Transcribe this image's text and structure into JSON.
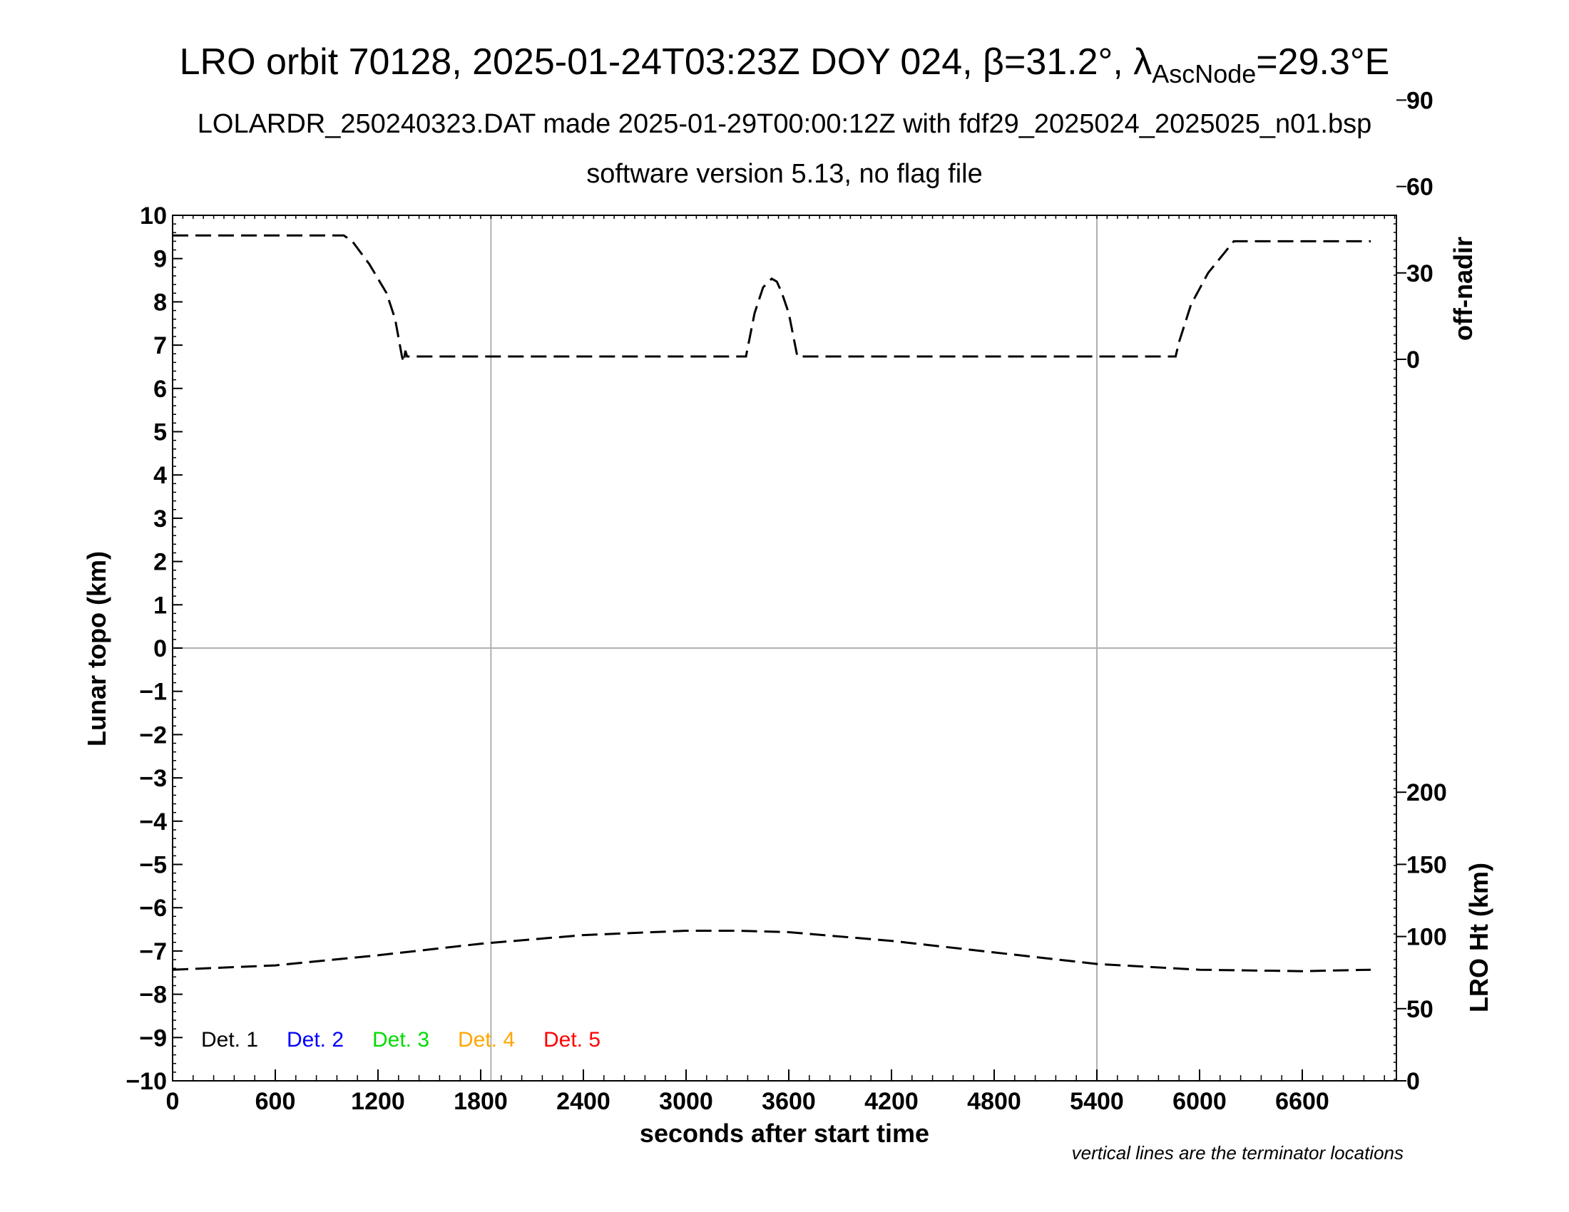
{
  "chart_data": {
    "type": "line",
    "title_main": "LRO orbit 70128, 2025-01-24T03:23Z DOY 024, ",
    "title_beta_symbol": "β",
    "title_beta_value": "=31.2°, ",
    "title_lambda_symbol": "λ",
    "title_lambda_sub": "AscNode",
    "title_lambda_value": "=29.3°E",
    "subtitle1": "LOLARDR_250240323.DAT made 2025-01-29T00:00:12Z with fdf29_2025024_2025025_n01.bsp",
    "subtitle2": "software version 5.13, no flag file",
    "xlabel": "seconds after start time",
    "ylabel_left": "Lunar topo (km)",
    "ylabel_right_top": "off-nadir",
    "ylabel_right_bottom": "LRO Ht (km)",
    "note": "vertical lines are the terminator locations",
    "xlim": [
      0,
      7150
    ],
    "ylim_left": [
      -10,
      10
    ],
    "x_ticks": [
      "0",
      "600",
      "1200",
      "1800",
      "2400",
      "3000",
      "3600",
      "4200",
      "4800",
      "5400",
      "6000",
      "6600"
    ],
    "x_tick_values": [
      0,
      600,
      1200,
      1800,
      2400,
      3000,
      3600,
      4200,
      4800,
      5400,
      6000,
      6600
    ],
    "y_ticks_left": [
      "−10",
      "−9",
      "−8",
      "−7",
      "−6",
      "−5",
      "−4",
      "−3",
      "−2",
      "−1",
      "0",
      "1",
      "2",
      "3",
      "4",
      "5",
      "6",
      "7",
      "8",
      "9",
      "10"
    ],
    "y_tick_values_left": [
      -10,
      -9,
      -8,
      -7,
      -6,
      -5,
      -4,
      -3,
      -2,
      -1,
      0,
      1,
      2,
      3,
      4,
      5,
      6,
      7,
      8,
      9,
      10
    ],
    "right_top_ticks": [
      "0",
      "30",
      "60",
      "90"
    ],
    "right_top_tick_values": [
      0,
      30,
      60,
      90
    ],
    "right_bottom_ticks": [
      "0",
      "50",
      "100",
      "150",
      "200"
    ],
    "right_bottom_tick_values": [
      0,
      50,
      100,
      150,
      200
    ],
    "terminators": [
      1860,
      5400
    ],
    "zero_line": 0,
    "legend": [
      {
        "label": "Det. 1",
        "color": "#000000"
      },
      {
        "label": "Det. 2",
        "color": "#0000ff"
      },
      {
        "label": "Det. 3",
        "color": "#00dd00"
      },
      {
        "label": "Det. 4",
        "color": "#ffa500"
      },
      {
        "label": "Det. 5",
        "color": "#ff0000"
      }
    ],
    "series": [
      {
        "axis": "off-nadir (deg)",
        "values_x": [
          0,
          1000,
          1050,
          1150,
          1250,
          1300,
          1340,
          1350,
          1360,
          1370,
          1400,
          3350,
          3360,
          3400,
          3450,
          3500,
          3530,
          3560,
          3600,
          3640,
          3650,
          3700,
          5860,
          5880,
          5950,
          6050,
          6200,
          7000
        ],
        "values_y": [
          43,
          43,
          41,
          33,
          23,
          14,
          1,
          -1,
          3,
          1,
          1,
          1,
          4,
          16,
          25,
          28,
          27,
          23,
          16,
          4,
          1,
          1,
          1,
          6,
          19,
          30,
          41,
          41
        ]
      },
      {
        "axis": "LRO Ht (km)",
        "values_x": [
          0,
          600,
          1200,
          1800,
          2400,
          3000,
          3300,
          3600,
          4200,
          4800,
          5400,
          6000,
          6600,
          7000
        ],
        "values_y": [
          77,
          80,
          87,
          95,
          101,
          104,
          104,
          103,
          97,
          89,
          81,
          77,
          76,
          77
        ]
      }
    ]
  }
}
